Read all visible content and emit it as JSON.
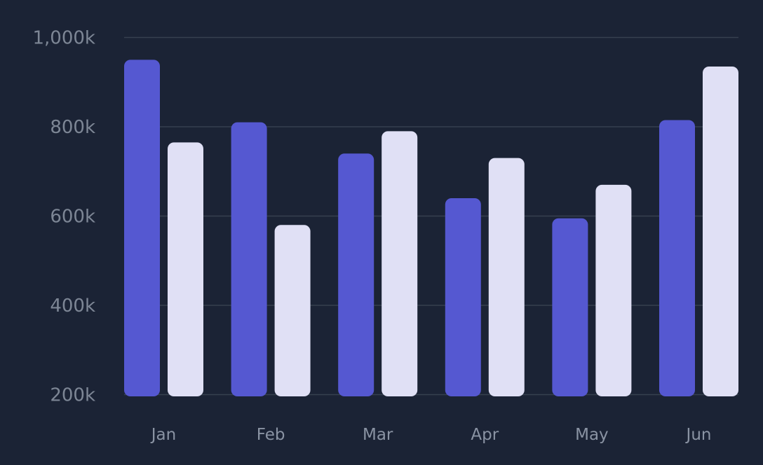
{
  "chart_data": {
    "type": "bar",
    "categories": [
      "Jan",
      "Feb",
      "Mar",
      "Apr",
      "May",
      "Jun"
    ],
    "series": [
      {
        "values": [
          950,
          810,
          740,
          640,
          595,
          815
        ],
        "color": "#5558d1"
      },
      {
        "values": [
          765,
          580,
          790,
          730,
          670,
          935
        ],
        "color": "#e0e0f5"
      }
    ],
    "ylim": [
      200,
      1000
    ],
    "yticks": [
      200,
      400,
      600,
      800,
      1000
    ],
    "ytick_labels": [
      "200k",
      "400k",
      "600k",
      "800k",
      "1,000k"
    ],
    "grid": true,
    "background": "#1b2335",
    "grid_color": "#36404f"
  }
}
